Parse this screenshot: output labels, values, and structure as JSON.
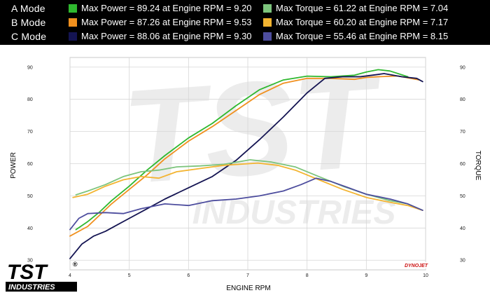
{
  "legend": [
    {
      "mode": "A Mode",
      "power_text": "Max Power = 89.24 at Engine RPM = 9.20",
      "torque_text": "Max Torque = 61.22 at Engine RPM = 7.04",
      "power_color": "#2fb82f",
      "torque_color": "#7cc47c"
    },
    {
      "mode": "B Mode",
      "power_text": "Max Power = 87.26 at Engine RPM = 9.53",
      "torque_text": "Max Torque = 60.20 at Engine RPM = 7.17",
      "power_color": "#f0901e",
      "torque_color": "#f3b431"
    },
    {
      "mode": "C Mode",
      "power_text": "Max Power = 88.06 at Engine RPM = 9.30",
      "torque_text": "Max Torque = 55.46 at Engine RPM = 8.15",
      "power_color": "#141452",
      "torque_color": "#4d4d9e"
    }
  ],
  "branding": {
    "logo_top": "TST",
    "logo_bottom": "INDUSTRIES",
    "registered": "®",
    "dyno_label": "DYNOJET"
  },
  "chart_data": {
    "type": "line",
    "xlabel": "ENGINE RPM",
    "ylabel_left": "POWER",
    "ylabel_right": "TORQUE",
    "xlim": [
      4,
      10
    ],
    "ylim": [
      27,
      93
    ],
    "x_ticks": [
      4,
      5,
      6,
      7,
      8,
      9,
      10
    ],
    "y_ticks": [
      30,
      40,
      50,
      60,
      70,
      80,
      90
    ],
    "grid": true,
    "series": [
      {
        "name": "A Mode Power",
        "color": "#2fb82f",
        "x": [
          4.1,
          4.3,
          4.5,
          4.7,
          5.0,
          5.3,
          5.6,
          6.0,
          6.4,
          6.8,
          7.2,
          7.6,
          8.0,
          8.4,
          8.8,
          9.0,
          9.2,
          9.4,
          9.7
        ],
        "y": [
          39.5,
          42,
          45,
          48.5,
          53,
          58,
          62.5,
          68,
          72.5,
          78,
          83,
          86,
          87.2,
          87,
          87.5,
          88.5,
          89.2,
          88.8,
          87
        ]
      },
      {
        "name": "B Mode Power",
        "color": "#f0901e",
        "x": [
          4.0,
          4.3,
          4.5,
          4.7,
          5.0,
          5.3,
          5.6,
          6.0,
          6.4,
          6.8,
          7.2,
          7.6,
          8.0,
          8.4,
          8.8,
          9.0,
          9.2,
          9.53,
          9.9
        ],
        "y": [
          37.5,
          40.5,
          44,
          47.5,
          52,
          56.5,
          61.5,
          67,
          71.5,
          76.5,
          81.5,
          85,
          86.5,
          86.5,
          86.2,
          86.8,
          87,
          87.26,
          86
        ]
      },
      {
        "name": "C Mode Power",
        "color": "#141452",
        "x": [
          4.0,
          4.2,
          4.4,
          4.6,
          4.8,
          5.0,
          5.3,
          5.6,
          6.0,
          6.4,
          6.8,
          7.2,
          7.6,
          8.0,
          8.3,
          8.6,
          8.9,
          9.1,
          9.3,
          9.6,
          9.85,
          9.95
        ],
        "y": [
          30.5,
          35,
          37.5,
          39,
          41,
          43,
          46,
          49,
          52.5,
          56,
          61,
          67.5,
          74.5,
          82,
          86.5,
          87,
          87,
          87.5,
          88,
          87,
          86.5,
          85.5
        ]
      },
      {
        "name": "A Mode Torque",
        "color": "#7cc47c",
        "x": [
          4.1,
          4.3,
          4.6,
          4.9,
          5.2,
          5.5,
          5.8,
          6.2,
          6.6,
          7.04,
          7.4,
          7.8,
          8.2,
          8.6,
          9.0,
          9.4,
          9.7,
          9.95
        ],
        "y": [
          50.3,
          51.5,
          53.5,
          56,
          57.5,
          58,
          59,
          59.3,
          59.8,
          61.2,
          60.5,
          59,
          56,
          53,
          50.5,
          48.5,
          47.5,
          45.5
        ]
      },
      {
        "name": "B Mode Torque",
        "color": "#f3b431",
        "x": [
          4.05,
          4.3,
          4.6,
          4.9,
          5.2,
          5.5,
          5.8,
          6.2,
          6.6,
          7.17,
          7.5,
          7.8,
          8.2,
          8.6,
          9.0,
          9.4,
          9.7,
          9.95
        ],
        "y": [
          49.5,
          50.5,
          53,
          55,
          56,
          55.5,
          57.5,
          58.5,
          59.5,
          60.2,
          59.5,
          58,
          55,
          52,
          49.5,
          48,
          47,
          45.5
        ]
      },
      {
        "name": "C Mode Torque",
        "color": "#4d4d9e",
        "x": [
          4.0,
          4.15,
          4.3,
          4.6,
          4.9,
          5.2,
          5.6,
          6.0,
          6.4,
          6.8,
          7.2,
          7.6,
          7.9,
          8.15,
          8.4,
          8.7,
          9.0,
          9.4,
          9.7,
          9.95
        ],
        "y": [
          39.5,
          43,
          44.5,
          44.8,
          44.5,
          46,
          47.5,
          47,
          48.5,
          49,
          50,
          51.5,
          53.5,
          55.46,
          54.5,
          52.5,
          50.5,
          49,
          47.5,
          45.5
        ]
      }
    ]
  }
}
